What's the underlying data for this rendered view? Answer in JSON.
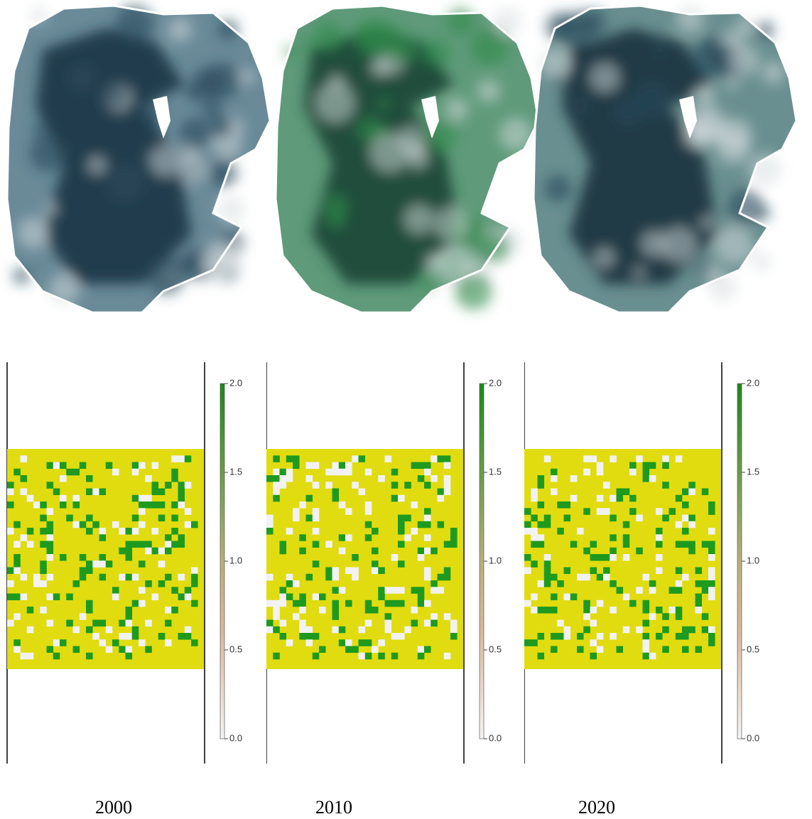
{
  "panels": [
    {
      "year": "2000"
    },
    {
      "year": "2010"
    },
    {
      "year": "2020"
    }
  ],
  "colorbar": {
    "ticks": [
      {
        "value": 0,
        "label": "0.0"
      },
      {
        "value": 0.5,
        "label": "0.5"
      },
      {
        "value": 1,
        "label": "1.0"
      },
      {
        "value": 1.5,
        "label": "1.5"
      },
      {
        "value": 2,
        "label": "2.0"
      }
    ],
    "range": [
      0,
      2
    ]
  }
}
